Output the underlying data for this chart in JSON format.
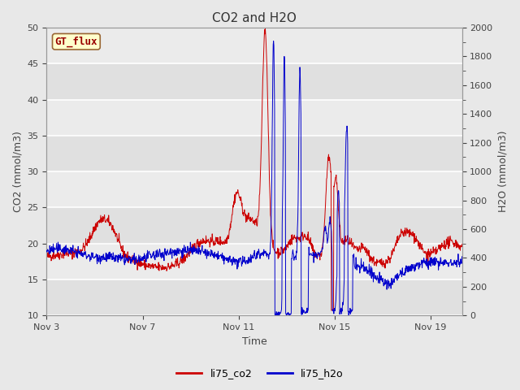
{
  "title": "CO2 and H2O",
  "xlabel": "Time",
  "ylabel_left": "CO2 (mmol/m3)",
  "ylabel_right": "H2O (mmol/m3)",
  "ylim_left": [
    10,
    50
  ],
  "ylim_right": [
    0,
    2000
  ],
  "fig_bg_color": "#e8e8e8",
  "plot_bg_color": "#e8e8e8",
  "band_color_light": "#ebebeb",
  "band_color_dark": "#d8d8d8",
  "co2_color": "#cc0000",
  "h2o_color": "#0000cc",
  "legend_entries": [
    "li75_co2",
    "li75_h2o"
  ],
  "gt_flux_label": "GT_flux",
  "gt_flux_bg": "#ffffcc",
  "gt_flux_border": "#996633",
  "xtick_labels": [
    "Nov 3",
    "Nov 7",
    "Nov 11",
    "Nov 15",
    "Nov 19"
  ],
  "xtick_positions": [
    0,
    4,
    8,
    12,
    16
  ],
  "yticks_left": [
    10,
    15,
    20,
    25,
    30,
    35,
    40,
    45,
    50
  ],
  "yticks_right": [
    0,
    200,
    400,
    600,
    800,
    1000,
    1200,
    1400,
    1600,
    1800,
    2000
  ],
  "seed": 42,
  "n_points": 1200
}
